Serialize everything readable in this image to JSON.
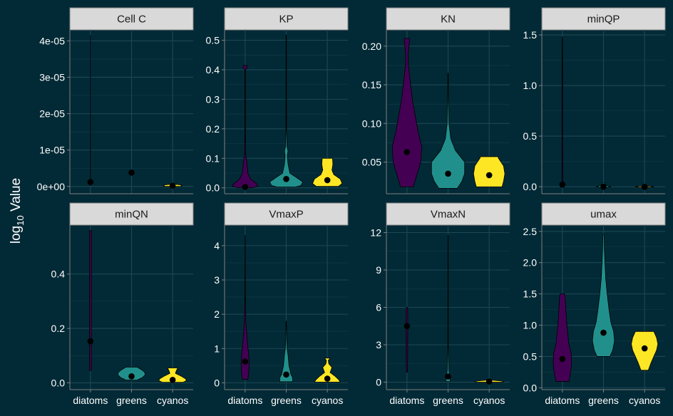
{
  "y_axis_label": "log₁₀ Value",
  "colors": {
    "background": "#022a36",
    "strip": "#d9d9d9",
    "axis": "#7f7f7f",
    "diatoms": "#440154",
    "greens": "#21908c",
    "cyanos": "#fde725"
  },
  "chart_data": {
    "type": "violin",
    "layout": "facet_wrap 2 rows x 4 columns",
    "categories": [
      "diatoms",
      "greens",
      "cyanos"
    ],
    "ylabel": "log₁₀ Value",
    "panels": [
      {
        "name": "Cell C",
        "ylim": [
          -2e-06,
          4.3e-05
        ],
        "ticks": [
          0,
          1e-05,
          2e-05,
          3e-05,
          4e-05
        ],
        "tick_labels": [
          "0e+00",
          "1e-05",
          "2e-05",
          "3e-05",
          "4e-05"
        ],
        "show_x_labels": false,
        "violins": [
          {
            "group": "diatoms",
            "profile": [
              [
                2e-07,
                0.003
              ],
              [
                1e-06,
                0.006
              ],
              [
                5e-06,
                0.005
              ],
              [
                1e-05,
                0.004
              ],
              [
                2e-05,
                0.003
              ],
              [
                3e-05,
                0.003
              ],
              [
                4.15e-05,
                0.003
              ]
            ],
            "point": 1.2e-06
          },
          {
            "group": "greens",
            "profile": [],
            "point": 3.8e-06
          },
          {
            "group": "cyanos",
            "profile": [
              [
                3e-08,
                0.5
              ],
              [
                2e-07,
                0.45
              ],
              [
                4e-07,
                0.5
              ],
              [
                6e-07,
                0.1
              ]
            ],
            "point": 2e-07
          }
        ]
      },
      {
        "name": "KP",
        "ylim": [
          -0.02,
          0.535
        ],
        "ticks": [
          0,
          0.1,
          0.2,
          0.3,
          0.4,
          0.5
        ],
        "tick_labels": [
          "0.0",
          "0.1",
          "0.2",
          "0.3",
          "0.4",
          "0.5"
        ],
        "show_x_labels": false,
        "violins": [
          {
            "group": "diatoms",
            "profile": [
              [
                0.001,
                0.45
              ],
              [
                0.006,
                0.7
              ],
              [
                0.015,
                0.6
              ],
              [
                0.03,
                0.3
              ],
              [
                0.05,
                0.15
              ],
              [
                0.08,
                0.1
              ],
              [
                0.095,
                0.08
              ],
              [
                0.11,
                0.03
              ],
              [
                0.2,
                0.015
              ],
              [
                0.4,
                0.015
              ],
              [
                0.405,
                0.1
              ],
              [
                0.415,
                0.11
              ]
            ],
            "point": 0.003
          },
          {
            "group": "greens",
            "profile": [
              [
                0.003,
                0.5
              ],
              [
                0.008,
                0.8
              ],
              [
                0.02,
                0.9
              ],
              [
                0.035,
                0.55
              ],
              [
                0.05,
                0.2
              ],
              [
                0.08,
                0.1
              ],
              [
                0.11,
                0.06
              ],
              [
                0.125,
                0.1
              ],
              [
                0.14,
                0.04
              ],
              [
                0.2,
                0.015
              ],
              [
                0.4,
                0.012
              ],
              [
                0.518,
                0.01
              ]
            ],
            "point": 0.03
          },
          {
            "group": "cyanos",
            "profile": [
              [
                0.005,
                0.6
              ],
              [
                0.015,
                0.8
              ],
              [
                0.03,
                0.7
              ],
              [
                0.045,
                0.35
              ],
              [
                0.06,
                0.25
              ],
              [
                0.08,
                0.3
              ],
              [
                0.1,
                0.28
              ]
            ],
            "point": 0.026
          }
        ]
      },
      {
        "name": "KN",
        "ylim": [
          0.009,
          0.221
        ],
        "ticks": [
          0.05,
          0.1,
          0.15,
          0.2
        ],
        "tick_labels": [
          "0.05",
          "0.10",
          "0.15",
          "0.20"
        ],
        "show_x_labels": false,
        "violins": [
          {
            "group": "diatoms",
            "profile": [
              [
                0.018,
                0.35
              ],
              [
                0.03,
                0.5
              ],
              [
                0.05,
                0.75
              ],
              [
                0.07,
                0.8
              ],
              [
                0.09,
                0.6
              ],
              [
                0.11,
                0.45
              ],
              [
                0.13,
                0.3
              ],
              [
                0.15,
                0.2
              ],
              [
                0.175,
                0.08
              ],
              [
                0.19,
                0.07
              ],
              [
                0.21,
                0.15
              ]
            ],
            "point": 0.063
          },
          {
            "group": "greens",
            "profile": [
              [
                0.016,
                0.5
              ],
              [
                0.025,
                0.75
              ],
              [
                0.035,
                0.9
              ],
              [
                0.05,
                0.9
              ],
              [
                0.065,
                0.4
              ],
              [
                0.08,
                0.15
              ],
              [
                0.1,
                0.05
              ],
              [
                0.13,
                0.02
              ],
              [
                0.165,
                0.01
              ]
            ],
            "point": 0.035
          },
          {
            "group": "cyanos",
            "profile": [
              [
                0.018,
                0.7
              ],
              [
                0.025,
                0.78
              ],
              [
                0.035,
                0.85
              ],
              [
                0.045,
                0.78
              ],
              [
                0.055,
                0.5
              ],
              [
                0.057,
                0.48
              ]
            ],
            "point": 0.033
          }
        ]
      },
      {
        "name": "minQP",
        "ylim": [
          -0.07,
          1.55
        ],
        "ticks": [
          0,
          0.5,
          1,
          1.5
        ],
        "tick_labels": [
          "0.0",
          "0.5",
          "1.0",
          "1.5"
        ],
        "show_x_labels": false,
        "violins": [
          {
            "group": "diatoms",
            "profile": [
              [
                0.001,
                0.03
              ],
              [
                0.05,
                0.025
              ],
              [
                0.5,
                0.02
              ],
              [
                1.0,
                0.02
              ],
              [
                1.48,
                0.01
              ]
            ],
            "point": 0.02
          },
          {
            "group": "greens",
            "profile": [
              [
                -0.01,
                0.15
              ],
              [
                0,
                0.4
              ],
              [
                0.01,
                0.15
              ],
              [
                0.04,
                0.02
              ]
            ],
            "point": -0.001
          },
          {
            "group": "cyanos",
            "profile": [
              [
                -0.005,
                0.3
              ],
              [
                0,
                0.5
              ],
              [
                0.005,
                0.3
              ]
            ],
            "point": -0.002
          }
        ]
      },
      {
        "name": "minQN",
        "ylim": [
          -0.025,
          0.58
        ],
        "ticks": [
          0,
          0.2,
          0.4
        ],
        "tick_labels": [
          "0.0",
          "0.2",
          "0.4"
        ],
        "show_x_labels": true,
        "violins": [
          {
            "group": "diatoms",
            "profile": [
              [
                0.045,
                0.05
              ],
              [
                0.1,
                0.05
              ],
              [
                0.2,
                0.05
              ],
              [
                0.3,
                0.05
              ],
              [
                0.4,
                0.05
              ],
              [
                0.5,
                0.05
              ],
              [
                0.56,
                0.05
              ]
            ],
            "point": 0.153
          },
          {
            "group": "greens",
            "profile": [
              [
                0.01,
                0.3
              ],
              [
                0.02,
                0.6
              ],
              [
                0.03,
                0.75
              ],
              [
                0.04,
                0.7
              ],
              [
                0.05,
                0.5
              ],
              [
                0.058,
                0.3
              ]
            ],
            "point": 0.024
          },
          {
            "group": "cyanos",
            "profile": [
              [
                0.002,
                0.55
              ],
              [
                0.008,
                0.75
              ],
              [
                0.015,
                0.7
              ],
              [
                0.025,
                0.45
              ],
              [
                0.035,
                0.15
              ],
              [
                0.045,
                0.2
              ],
              [
                0.055,
                0.28
              ]
            ],
            "point": 0.011
          }
        ]
      },
      {
        "name": "VmaxP",
        "ylim": [
          -0.2,
          4.6
        ],
        "ticks": [
          0,
          1,
          2,
          3,
          4
        ],
        "tick_labels": [
          "0",
          "1",
          "2",
          "3",
          "4"
        ],
        "show_x_labels": true,
        "violins": [
          {
            "group": "diatoms",
            "profile": [
              [
                0.1,
                0.15
              ],
              [
                0.3,
                0.2
              ],
              [
                0.6,
                0.22
              ],
              [
                0.9,
                0.18
              ],
              [
                1.2,
                0.12
              ],
              [
                1.5,
                0.08
              ],
              [
                1.75,
                0.04
              ],
              [
                2.5,
                0.015
              ],
              [
                3.5,
                0.01
              ],
              [
                4.3,
                0.005
              ]
            ],
            "point": 0.62
          },
          {
            "group": "greens",
            "profile": [
              [
                0.03,
                0.35
              ],
              [
                0.15,
                0.35
              ],
              [
                0.25,
                0.25
              ],
              [
                0.5,
                0.15
              ],
              [
                0.8,
                0.1
              ],
              [
                1.0,
                0.05
              ],
              [
                1.2,
                0.03
              ],
              [
                1.8,
                0.01
              ]
            ],
            "point": 0.24
          },
          {
            "group": "cyanos",
            "profile": [
              [
                0.02,
                0.7
              ],
              [
                0.1,
                0.6
              ],
              [
                0.2,
                0.4
              ],
              [
                0.3,
                0.15
              ],
              [
                0.45,
                0.25
              ],
              [
                0.55,
                0.08
              ],
              [
                0.65,
                0.05
              ],
              [
                0.72,
                0.15
              ]
            ],
            "point": 0.12
          }
        ]
      },
      {
        "name": "VmaxN",
        "ylim": [
          -0.6,
          12.6
        ],
        "ticks": [
          0,
          3,
          6,
          9,
          12
        ],
        "tick_labels": [
          "0",
          "3",
          "6",
          "9",
          "12"
        ],
        "show_x_labels": true,
        "violins": [
          {
            "group": "diatoms",
            "profile": [
              [
                0.8,
                0.03
              ],
              [
                2.0,
                0.04
              ],
              [
                3.5,
                0.04
              ],
              [
                4.5,
                0.05
              ],
              [
                6.0,
                0.04
              ]
            ],
            "point": 4.5
          },
          {
            "group": "greens",
            "profile": [
              [
                0.05,
                0.1
              ],
              [
                0.2,
                0.12
              ],
              [
                0.5,
                0.08
              ],
              [
                1.0,
                0.04
              ],
              [
                3,
                0.012
              ],
              [
                6,
                0.01
              ],
              [
                9,
                0.008
              ],
              [
                11.8,
                0.005
              ]
            ],
            "point": 0.45
          },
          {
            "group": "cyanos",
            "profile": [
              [
                0.0,
                0.7
              ],
              [
                0.05,
                0.8
              ],
              [
                0.1,
                0.6
              ],
              [
                0.15,
                0.2
              ]
            ],
            "point": 0.05
          }
        ]
      },
      {
        "name": "umax",
        "ylim": [
          -0.03,
          2.6
        ],
        "ticks": [
          0,
          0.5,
          1,
          1.5,
          2,
          2.5
        ],
        "tick_labels": [
          "0.0",
          "0.5",
          "1.0",
          "1.5",
          "2.0",
          "2.5"
        ],
        "show_x_labels": true,
        "violins": [
          {
            "group": "diatoms",
            "profile": [
              [
                0.1,
                0.35
              ],
              [
                0.25,
                0.45
              ],
              [
                0.4,
                0.5
              ],
              [
                0.55,
                0.48
              ],
              [
                0.7,
                0.35
              ],
              [
                0.9,
                0.28
              ],
              [
                1.1,
                0.22
              ],
              [
                1.3,
                0.18
              ],
              [
                1.45,
                0.15
              ],
              [
                1.5,
                0.12
              ]
            ],
            "point": 0.46
          },
          {
            "group": "greens",
            "profile": [
              [
                0.5,
                0.35
              ],
              [
                0.6,
                0.5
              ],
              [
                0.75,
                0.6
              ],
              [
                0.9,
                0.55
              ],
              [
                1.05,
                0.4
              ],
              [
                1.25,
                0.3
              ],
              [
                1.5,
                0.2
              ],
              [
                1.75,
                0.12
              ],
              [
                2.0,
                0.08
              ],
              [
                2.2,
                0.05
              ],
              [
                2.45,
                0.03
              ]
            ],
            "point": 0.88
          },
          {
            "group": "cyanos",
            "profile": [
              [
                0.28,
                0.2
              ],
              [
                0.4,
                0.35
              ],
              [
                0.5,
                0.5
              ],
              [
                0.6,
                0.65
              ],
              [
                0.7,
                0.72
              ],
              [
                0.8,
                0.65
              ],
              [
                0.9,
                0.5
              ]
            ],
            "point": 0.63
          }
        ]
      }
    ]
  }
}
